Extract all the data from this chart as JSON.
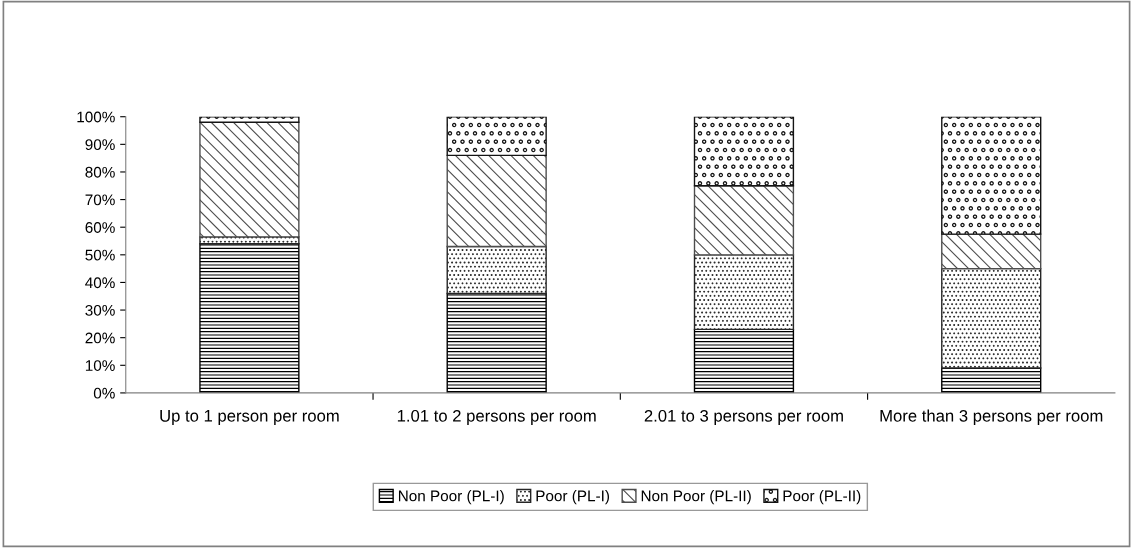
{
  "chart_data": {
    "type": "bar",
    "stacked": true,
    "categories": [
      "Up to 1 person per room",
      "1.01 to 2 persons per room",
      "2.01 to 3 persons per room",
      "More than 3 persons per room"
    ],
    "series": [
      {
        "name": "Non Poor (PL-I)",
        "color": "#000000",
        "values": [
          54,
          36,
          23,
          9
        ]
      },
      {
        "name": "Poor (PL-I)",
        "color": "#262626",
        "values": [
          2.5,
          17,
          27,
          36
        ]
      },
      {
        "name": "Non Poor (PL-II)",
        "color": "#4d4d4d",
        "values": [
          41.5,
          33,
          25,
          12.5
        ]
      },
      {
        "name": "Poor (PL-II)",
        "color": "#141414",
        "values": [
          2,
          14,
          25,
          42.5
        ]
      }
    ],
    "ylim": [
      0,
      100
    ],
    "yticks": [
      {
        "value": 0,
        "label": "0%"
      },
      {
        "value": 10,
        "label": "10%"
      },
      {
        "value": 20,
        "label": "20%"
      },
      {
        "value": 30,
        "label": "30%"
      },
      {
        "value": 40,
        "label": "40%"
      },
      {
        "value": 50,
        "label": "50%"
      },
      {
        "value": 60,
        "label": "60%"
      },
      {
        "value": 70,
        "label": "70%"
      },
      {
        "value": 80,
        "label": "80%"
      },
      {
        "value": 90,
        "label": "90%"
      },
      {
        "value": 100,
        "label": "100%"
      }
    ],
    "grid": false,
    "legend": "bottom"
  }
}
